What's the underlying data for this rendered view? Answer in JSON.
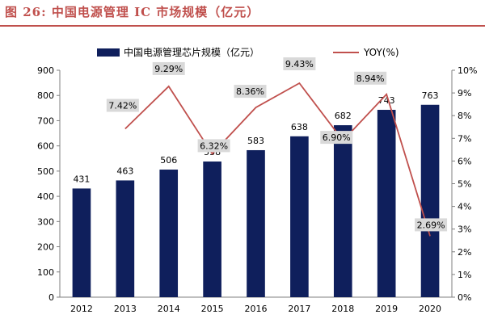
{
  "figure": {
    "caption": "图 26: 中国电源管理 IC 市场规模（亿元）"
  },
  "chart_data": {
    "type": "bar",
    "categories": [
      "2012",
      "2013",
      "2014",
      "2015",
      "2016",
      "2017",
      "2018",
      "2019",
      "2020"
    ],
    "series": [
      {
        "name": "中国电源管理芯片规模（亿元）",
        "type": "bar",
        "axis": "left",
        "color": "#0f1f5c",
        "values": [
          431,
          463,
          506,
          538,
          583,
          638,
          682,
          743,
          763
        ],
        "labels": [
          "431",
          "463",
          "506",
          "538",
          "583",
          "638",
          "682",
          "743",
          "763"
        ]
      },
      {
        "name": "YOY(%)",
        "type": "line",
        "axis": "right",
        "color": "#c0504d",
        "x": [
          "2013",
          "2014",
          "2015",
          "2016",
          "2017",
          "2018",
          "2019",
          "2020"
        ],
        "values": [
          7.42,
          9.29,
          6.32,
          8.36,
          9.43,
          6.9,
          8.94,
          2.69
        ],
        "labels": [
          "7.42%",
          "9.29%",
          "6.32%",
          "8.36%",
          "9.43%",
          "6.90%",
          "8.94%",
          "2.69%"
        ]
      }
    ],
    "y_left": {
      "range": [
        0,
        900
      ],
      "ticks": [
        0,
        100,
        200,
        300,
        400,
        500,
        600,
        700,
        800,
        900
      ],
      "tick_labels": [
        "0",
        "100",
        "200",
        "300",
        "400",
        "500",
        "600",
        "700",
        "800",
        "900"
      ]
    },
    "y_right": {
      "range": [
        0,
        10
      ],
      "ticks": [
        0,
        1,
        2,
        3,
        4,
        5,
        6,
        7,
        8,
        9,
        10
      ],
      "tick_labels": [
        "0%",
        "1%",
        "2%",
        "3%",
        "4%",
        "5%",
        "6%",
        "7%",
        "8%",
        "9%",
        "10%"
      ]
    },
    "legend_position": "top",
    "grid": false
  }
}
